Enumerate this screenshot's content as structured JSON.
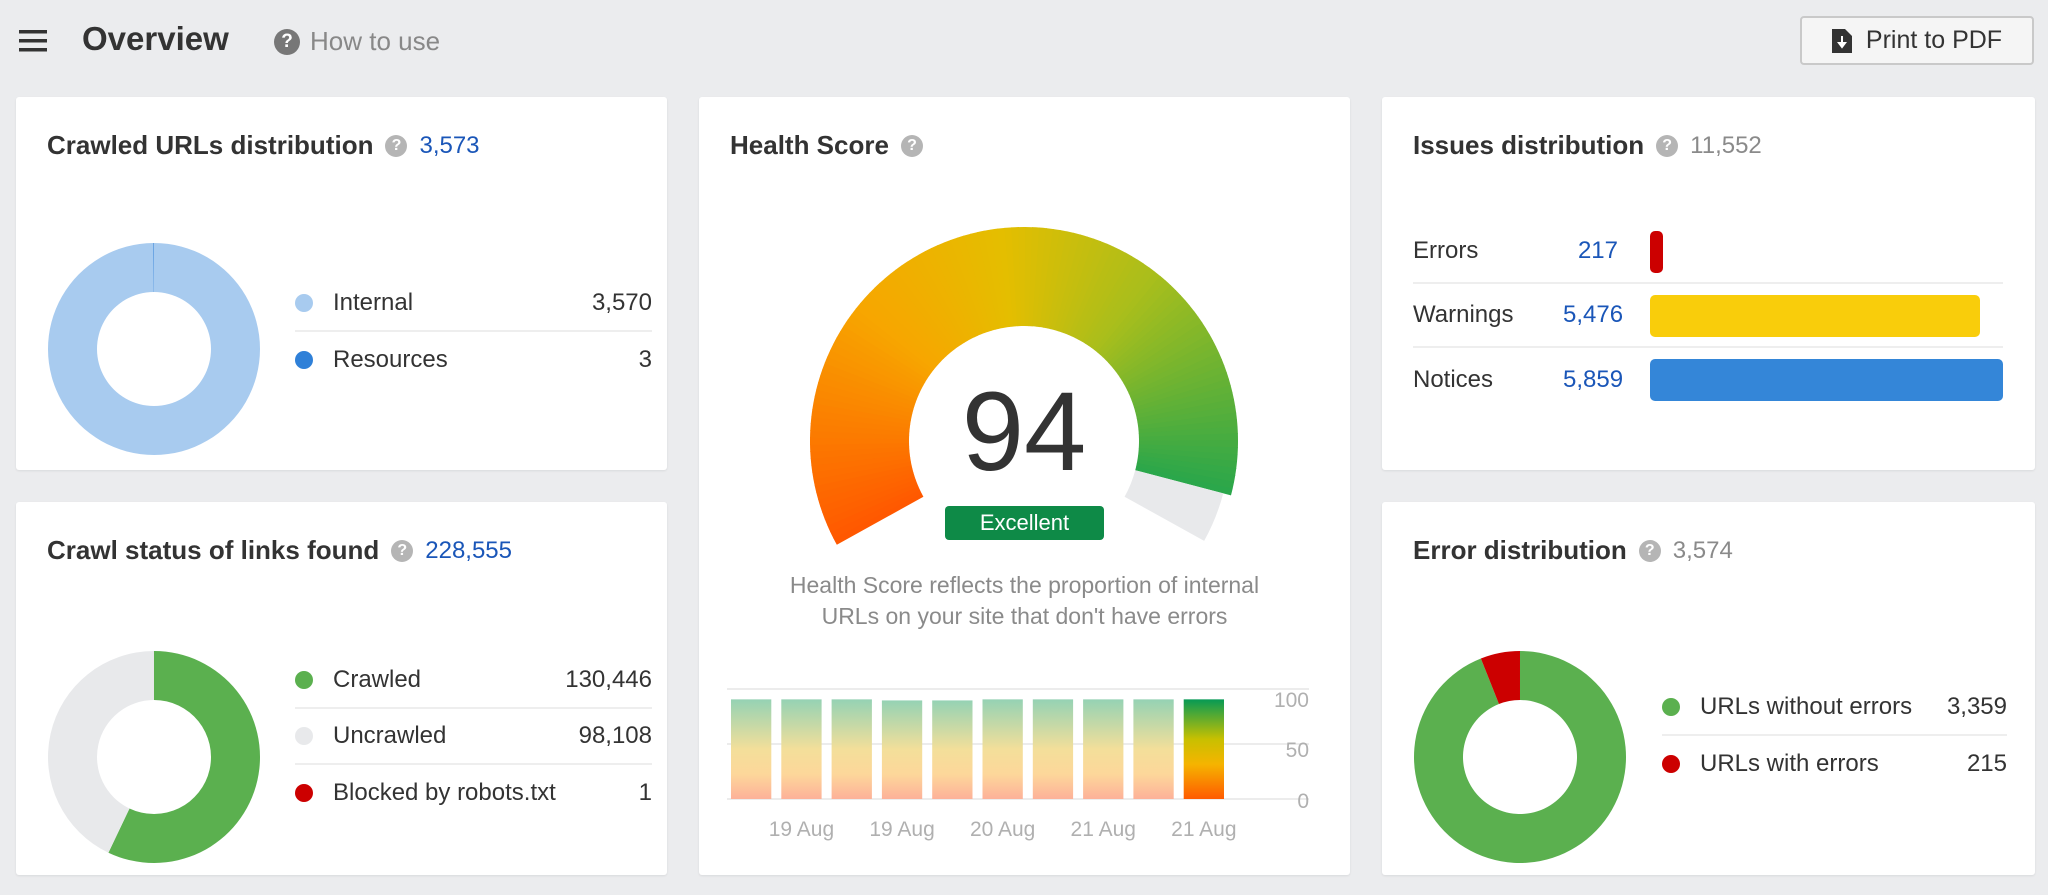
{
  "header": {
    "title": "Overview",
    "help_label": "How to use",
    "print_label": "Print to PDF",
    "icons": {
      "menu": "hamburger-icon",
      "help": "question-circle-icon",
      "print": "file-download-icon"
    }
  },
  "crawled_urls": {
    "title": "Crawled URLs distribution",
    "total": "3,573",
    "items": [
      {
        "label": "Internal",
        "value": "3,570",
        "num": 3570,
        "color": "#a8cbef"
      },
      {
        "label": "Resources",
        "value": "3",
        "num": 3,
        "color": "#2f80d8"
      }
    ]
  },
  "crawl_status": {
    "title": "Crawl status of links found",
    "total": "228,555",
    "items": [
      {
        "label": "Crawled",
        "value": "130,446",
        "num": 130446,
        "color": "#5bb04f"
      },
      {
        "label": "Uncrawled",
        "value": "98,108",
        "num": 98108,
        "color": "#e8e9eb"
      },
      {
        "label": "Blocked by robots.txt",
        "value": "1",
        "num": 1,
        "color": "#cc0000"
      }
    ]
  },
  "health": {
    "title": "Health Score",
    "score": "94",
    "score_value": 94,
    "rating": "Excellent",
    "rating_color": "#0e8a47",
    "description_line1": "Health Score reflects the proportion of internal",
    "description_line2": "URLs on your site that don't have errors"
  },
  "chart_data": {
    "type": "bar",
    "values": [
      94,
      94,
      94,
      93,
      93,
      94,
      94,
      94,
      94,
      94
    ],
    "x_tick_labels": [
      "19 Aug",
      "19 Aug",
      "20 Aug",
      "21 Aug",
      "21 Aug"
    ],
    "y_tick_labels": [
      "100",
      "50",
      "0"
    ],
    "ylim": [
      0,
      100
    ],
    "grid": true
  },
  "issues": {
    "title": "Issues distribution",
    "total": "11,552",
    "items": [
      {
        "label": "Errors",
        "value": "217",
        "num": 217,
        "color": "#cc0000"
      },
      {
        "label": "Warnings",
        "value": "5,476",
        "num": 5476,
        "color": "#f9cd0b"
      },
      {
        "label": "Notices",
        "value": "5,859",
        "num": 5859,
        "color": "#3486d8"
      }
    ]
  },
  "errors": {
    "title": "Error distribution",
    "total": "3,574",
    "items": [
      {
        "label": "URLs without errors",
        "value": "3,359",
        "num": 3359,
        "color": "#5bb04f"
      },
      {
        "label": "URLs with errors",
        "value": "215",
        "num": 215,
        "color": "#cc0000"
      }
    ]
  }
}
